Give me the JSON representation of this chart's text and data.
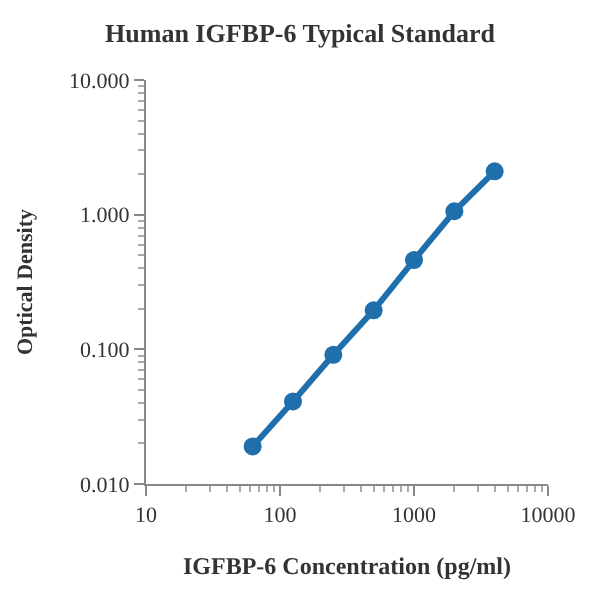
{
  "chart_data": {
    "type": "line",
    "title": "Human IGFBP-6 Typical Standard",
    "xlabel": "IGFBP-6 Concentration (pg/ml)",
    "ylabel": "Optical Density",
    "x": [
      62.5,
      125,
      250,
      500,
      1000,
      2000,
      4000
    ],
    "series": [
      {
        "color": "#1f6fad",
        "values": [
          0.019,
          0.041,
          0.091,
          0.195,
          0.46,
          1.06,
          2.1
        ]
      }
    ],
    "log": "xy",
    "marker": "circle",
    "line_style": "solid",
    "legend": false,
    "xlim": [
      10,
      10000
    ],
    "xticks": [
      10,
      100,
      1000,
      10000
    ],
    "ylim": [
      0.01,
      10
    ],
    "yticks": [
      {
        "value": 0.01,
        "label": "0.010"
      },
      {
        "value": 0.1,
        "label": "0.100"
      },
      {
        "value": 1,
        "label": "1.000"
      },
      {
        "value": 10,
        "label": "10.000"
      }
    ]
  }
}
